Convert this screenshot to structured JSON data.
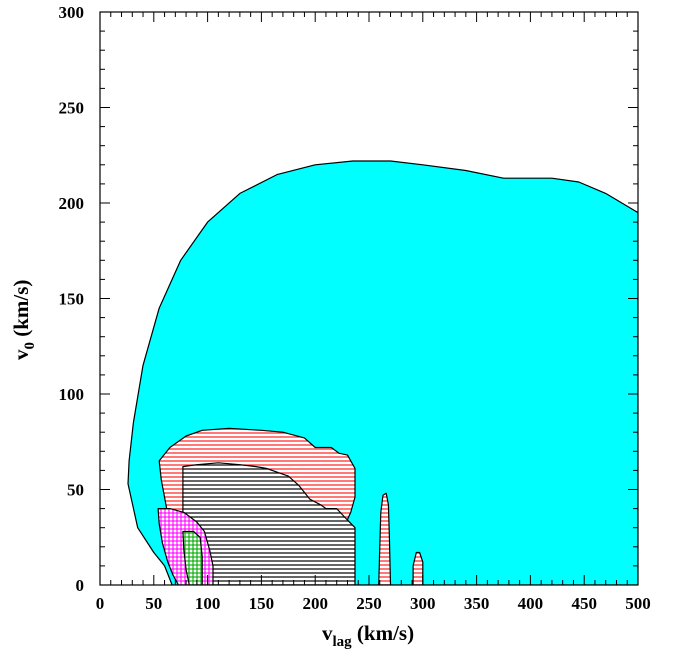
{
  "chart_data": {
    "type": "contour",
    "xlabel": {
      "main": "v",
      "sub": "lag",
      "unit": " (km/s)"
    },
    "ylabel": {
      "main": "v",
      "sub": "0",
      "unit": " (km/s)"
    },
    "xlim": [
      0,
      500
    ],
    "ylim": [
      0,
      300
    ],
    "x_ticks": [
      "0",
      "50",
      "100",
      "150",
      "200",
      "250",
      "300",
      "350",
      "400",
      "450",
      "500"
    ],
    "y_ticks": [
      "0",
      "50",
      "100",
      "150",
      "200",
      "250",
      "300"
    ],
    "grid": false,
    "regions": [
      {
        "fill": "#00ffff",
        "pattern": "solid",
        "points": [
          [
            67,
            0
          ],
          [
            60,
            10
          ],
          [
            50,
            17
          ],
          [
            35,
            30
          ],
          [
            26,
            53
          ],
          [
            27,
            65
          ],
          [
            31,
            85
          ],
          [
            40,
            115
          ],
          [
            55,
            145
          ],
          [
            75,
            170
          ],
          [
            100,
            190
          ],
          [
            130,
            205
          ],
          [
            165,
            215
          ],
          [
            200,
            220
          ],
          [
            235,
            222
          ],
          [
            270,
            222
          ],
          [
            300,
            220
          ],
          [
            340,
            217
          ],
          [
            375,
            213
          ],
          [
            420,
            213
          ],
          [
            445,
            211
          ],
          [
            470,
            205
          ],
          [
            500,
            195
          ],
          [
            500,
            0
          ]
        ]
      },
      {
        "fill": "#ff3333",
        "pattern": "horizontal-lines",
        "points": [
          [
            55,
            65
          ],
          [
            65,
            72
          ],
          [
            80,
            78
          ],
          [
            95,
            81
          ],
          [
            120,
            82
          ],
          [
            150,
            81
          ],
          [
            170,
            80
          ],
          [
            190,
            77
          ],
          [
            200,
            72
          ],
          [
            215,
            72
          ],
          [
            222,
            69
          ],
          [
            230,
            68
          ],
          [
            237,
            61
          ],
          [
            237,
            46
          ],
          [
            233,
            38
          ],
          [
            225,
            28
          ],
          [
            210,
            22
          ],
          [
            195,
            15
          ],
          [
            180,
            10
          ],
          [
            160,
            5
          ],
          [
            130,
            2
          ],
          [
            100,
            0
          ],
          [
            80,
            0
          ],
          [
            72,
            12
          ],
          [
            62,
            40
          ],
          [
            57,
            55
          ]
        ]
      },
      {
        "fill": "#000000",
        "pattern": "horizontal-lines",
        "points": [
          [
            77,
            62
          ],
          [
            90,
            63
          ],
          [
            110,
            64
          ],
          [
            130,
            63
          ],
          [
            145,
            62
          ],
          [
            155,
            61
          ],
          [
            165,
            59
          ],
          [
            175,
            57
          ],
          [
            185,
            52
          ],
          [
            195,
            45
          ],
          [
            205,
            42
          ],
          [
            210,
            40
          ],
          [
            220,
            40
          ],
          [
            230,
            34
          ],
          [
            237,
            30
          ],
          [
            237,
            0
          ],
          [
            77,
            0
          ]
        ]
      },
      {
        "fill": "#ff00ff",
        "pattern": "grid",
        "points": [
          [
            54,
            40
          ],
          [
            65,
            40
          ],
          [
            78,
            38
          ],
          [
            90,
            33
          ],
          [
            97,
            28
          ],
          [
            102,
            18
          ],
          [
            105,
            10
          ],
          [
            105,
            0
          ],
          [
            73,
            0
          ],
          [
            68,
            5
          ],
          [
            63,
            12
          ],
          [
            58,
            22
          ],
          [
            55,
            32
          ]
        ]
      },
      {
        "fill": "#00aa00",
        "pattern": "grid",
        "points": [
          [
            77,
            28
          ],
          [
            87,
            28
          ],
          [
            93,
            25
          ],
          [
            95,
            15
          ],
          [
            95,
            0
          ],
          [
            83,
            0
          ],
          [
            80,
            8
          ],
          [
            78,
            18
          ]
        ]
      },
      {
        "fill": "#ff3333",
        "pattern": "horizontal-lines",
        "points": [
          [
            259,
            0
          ],
          [
            260,
            20
          ],
          [
            261,
            38
          ],
          [
            263,
            47
          ],
          [
            266,
            48
          ],
          [
            268,
            42
          ],
          [
            269,
            25
          ],
          [
            270,
            0
          ]
        ]
      },
      {
        "fill": "#ff3333",
        "pattern": "horizontal-lines",
        "points": [
          [
            291,
            0
          ],
          [
            291,
            10
          ],
          [
            294,
            17
          ],
          [
            297,
            17
          ],
          [
            300,
            12
          ],
          [
            300,
            0
          ]
        ]
      }
    ]
  }
}
